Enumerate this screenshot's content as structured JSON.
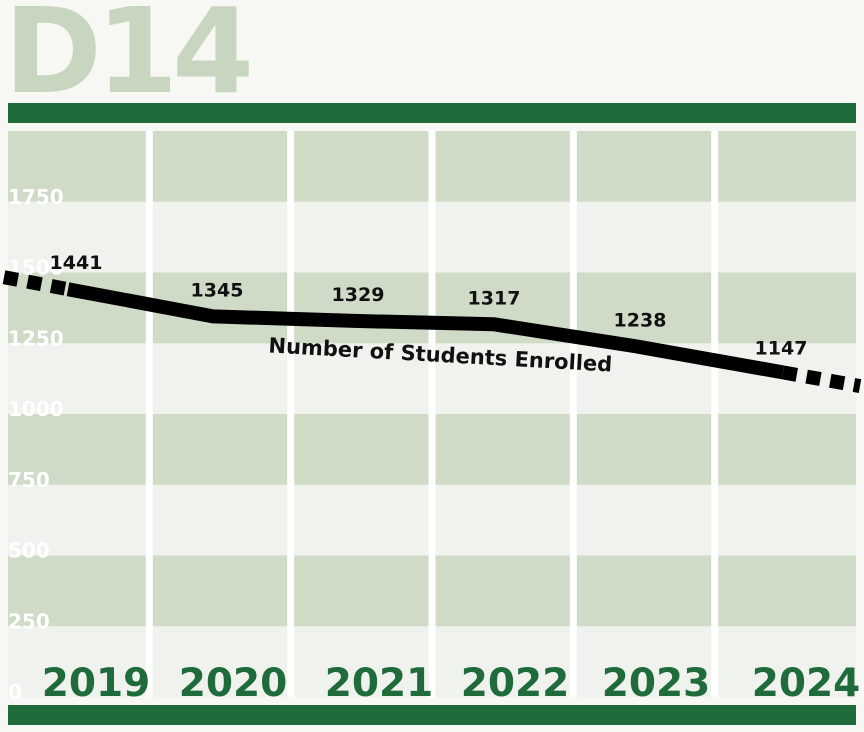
{
  "page": {
    "title": "D14",
    "colors": {
      "background": "#f7f7f4",
      "band_dark": "#cfdbc6",
      "band_light": "#f0f2ee",
      "rule_green": "#1f6b3c",
      "year_green": "#1f6b3c",
      "line": "#000000",
      "tick_text": "#ffffff",
      "title": "#c9d6bf"
    }
  },
  "chart_data": {
    "type": "line",
    "title": "D14",
    "categories": [
      "2019",
      "2020",
      "2021",
      "2022",
      "2023",
      "2024"
    ],
    "series": [
      {
        "name": "Number of Students Enrolled",
        "values": [
          1441,
          1345,
          1329,
          1317,
          1238,
          1147
        ]
      }
    ],
    "data_labels": [
      "1441",
      "1345",
      "1329",
      "1317",
      "1238",
      "1147"
    ],
    "yticks": [
      "0",
      "250",
      "500",
      "750",
      "1000",
      "1250",
      "1500",
      "1750"
    ],
    "ylim": [
      0,
      2000
    ],
    "legend": "inline-under-line",
    "grid": true,
    "extensions": "dashed line continues beyond first and last year"
  }
}
